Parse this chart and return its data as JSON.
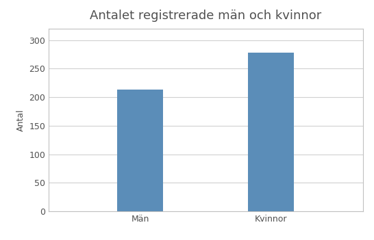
{
  "title": "Antalet registrerade män och kvinnor",
  "categories": [
    "Män",
    "Kvinnor"
  ],
  "values": [
    213,
    278
  ],
  "bar_color": "#5B8DB8",
  "ylabel": "Antal",
  "ylim": [
    0,
    320
  ],
  "yticks": [
    0,
    50,
    100,
    150,
    200,
    250,
    300
  ],
  "title_fontsize": 13,
  "label_fontsize": 9,
  "tick_fontsize": 9,
  "bar_width": 0.35,
  "background_color": "#ffffff",
  "grid_color": "#d0d0d0",
  "border_color": "#c0c0c0"
}
